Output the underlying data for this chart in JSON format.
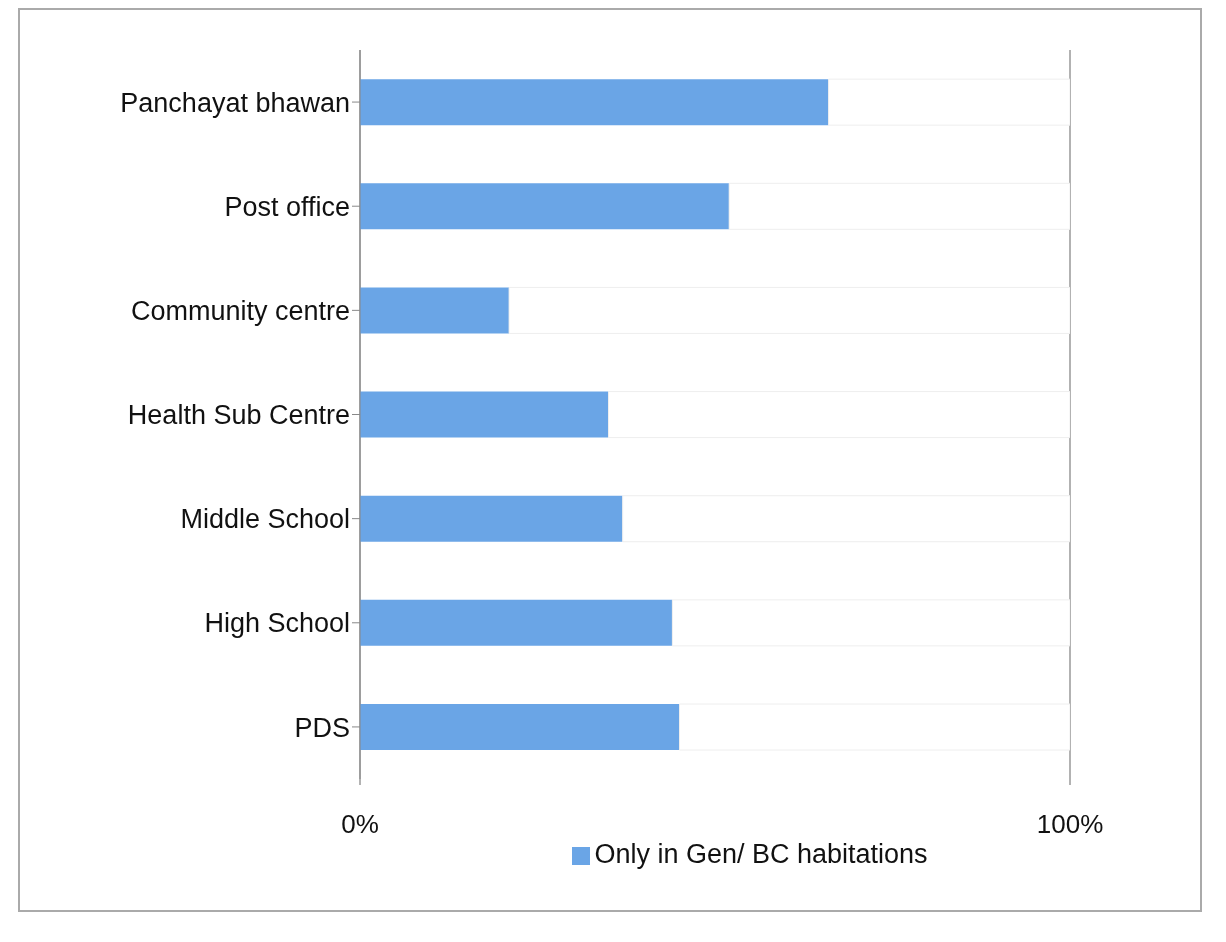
{
  "chart_data": {
    "type": "bar",
    "orientation": "horizontal",
    "stacked": true,
    "categories": [
      "Panchayat bhawan",
      "Post office",
      "Community centre",
      "Health Sub Centre",
      "Middle School",
      "High School",
      "PDS"
    ],
    "series": [
      {
        "name": "Only in Gen/ BC habitations",
        "color": "#6aa5e6",
        "values": [
          66,
          52,
          21,
          35,
          37,
          44,
          45
        ]
      },
      {
        "color": "#ffffff",
        "values": [
          34,
          48,
          79,
          65,
          63,
          56,
          55
        ]
      }
    ],
    "xlim": [
      0,
      100
    ],
    "xticks": [
      {
        "value": 0,
        "label": "0%"
      },
      {
        "value": 100,
        "label": "100%"
      }
    ],
    "grid": "x",
    "legend": "bottom"
  }
}
